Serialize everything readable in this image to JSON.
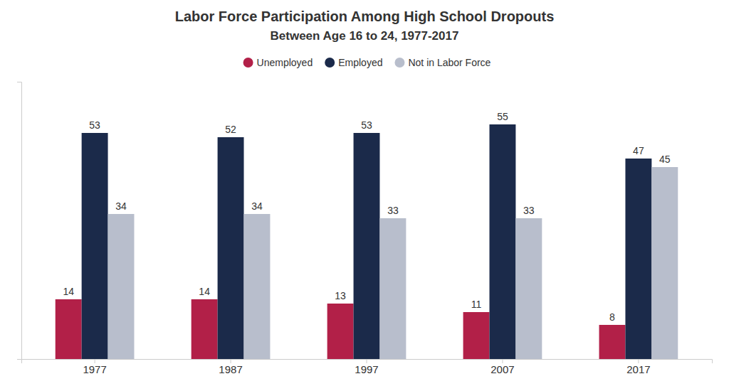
{
  "chart_data": {
    "type": "bar",
    "title": "Labor Force Participation Among High School Dropouts",
    "subtitle": "Between Age 16 to 24, 1977-2017",
    "categories": [
      "1977",
      "1987",
      "1997",
      "2007",
      "2017"
    ],
    "series": [
      {
        "name": "Unemployed",
        "color": "#B22048",
        "values": [
          14,
          14,
          13,
          11,
          8
        ]
      },
      {
        "name": "Employed",
        "color": "#1B2A4A",
        "values": [
          53,
          52,
          53,
          55,
          47
        ]
      },
      {
        "name": "Not in Labor Force",
        "color": "#B8BECC",
        "values": [
          34,
          34,
          33,
          33,
          45
        ]
      }
    ],
    "ylim": [
      0,
      65
    ],
    "grid": false,
    "legend": "top",
    "data_labels": true,
    "tick_labels": "x"
  }
}
